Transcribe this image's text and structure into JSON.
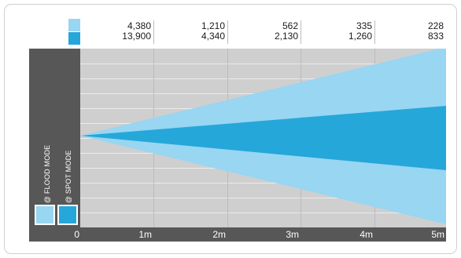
{
  "colors": {
    "flood": "#98d6f2",
    "spot": "#26a7da",
    "grid_bg": "#cfcfcf",
    "panel": "#575757"
  },
  "legend": {
    "flood_label": "LUX @ FLOOD MODE",
    "spot_label": "LUX @ SPOT MODE"
  },
  "chart_data": {
    "type": "table",
    "distances": [
      "1m",
      "2m",
      "3m",
      "4m",
      "5m"
    ],
    "origin_label": "0",
    "series": [
      {
        "name": "LUX @ FLOOD MODE",
        "values": [
          "4,380",
          "1,210",
          "562",
          "335",
          "228"
        ]
      },
      {
        "name": "LUX @ SPOT MODE",
        "values": [
          "13,900",
          "4,340",
          "2,130",
          "1,260",
          "833"
        ]
      }
    ],
    "beam": {
      "flood_spread_fraction": 1.0,
      "spot_spread_fraction": 0.36
    }
  }
}
